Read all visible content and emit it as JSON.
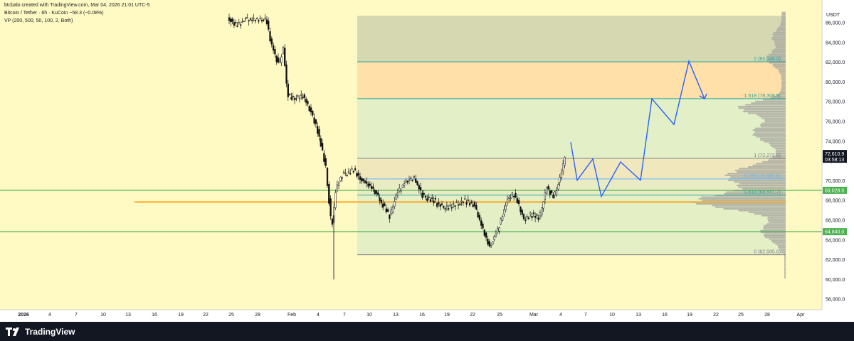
{
  "header": {
    "credit": "btcbalo created with TradingView.com, Mar 04, 2026 21:01 UTC-5",
    "symbol": "Bitcoin / Tether · 6h · KuCoin  −58.3 (−0.08%)",
    "indicator": "VP (200, 500, 50, 100, 2, Both)"
  },
  "axis": {
    "currency": "USDT",
    "y_ticks": [
      "86,000.0",
      "84,000.0",
      "82,000.0",
      "80,000.0",
      "78,000.0",
      "76,000.0",
      "74,000.0",
      "72,000.0",
      "70,000.0",
      "68,000.0",
      "66,000.0",
      "64,000.0",
      "62,000.0",
      "60,000.0",
      "58,000.0"
    ],
    "x_ticks": [
      "2026",
      "4",
      "7",
      "10",
      "13",
      "16",
      "19",
      "22",
      "25",
      "28",
      "Feb",
      "4",
      "7",
      "10",
      "13",
      "16",
      "19",
      "22",
      "25",
      "Mar",
      "4",
      "7",
      "10",
      "13",
      "16",
      "19",
      "22",
      "25",
      "28",
      "Apr"
    ]
  },
  "price_badges": {
    "last_price": "72,610.9",
    "countdown": "03:58:13",
    "level_upper": "69,028.0",
    "level_lower": "64,840.0"
  },
  "fib_levels": [
    {
      "label": "2 (82,040.0)",
      "price": 82040,
      "color": "#26a69a"
    },
    {
      "label": "1.618 (78,308.9)",
      "price": 78308.9,
      "color": "#26a69a"
    },
    {
      "label": "1 (72,272.8)",
      "price": 72272.8,
      "color": "#787b86"
    },
    {
      "label": "0.786 (70,182.6)",
      "price": 70182.6,
      "color": "#64b5f6"
    },
    {
      "label": "0.618 (68,541.7)",
      "price": 68541.7,
      "color": "#26a69a"
    },
    {
      "label": "0 (62,505.6)",
      "price": 62505.6,
      "color": "#787b86"
    }
  ],
  "horizontal_levels": [
    {
      "price": 69028,
      "color": "#4caf50"
    },
    {
      "price": 64840,
      "color": "#4caf50"
    },
    {
      "price": 67850,
      "color": "#ff9800"
    }
  ],
  "projection_path_prices": [
    73900,
    70050,
    72200,
    68400,
    71900,
    70050,
    78300,
    75700,
    82100,
    78300
  ],
  "colors": {
    "background": "#fff9c4",
    "up": "#111111",
    "down": "#111111",
    "projection": "#2962ff",
    "volume_profile": "#9e9e9e"
  },
  "footer": {
    "brand": "TradingView"
  }
}
